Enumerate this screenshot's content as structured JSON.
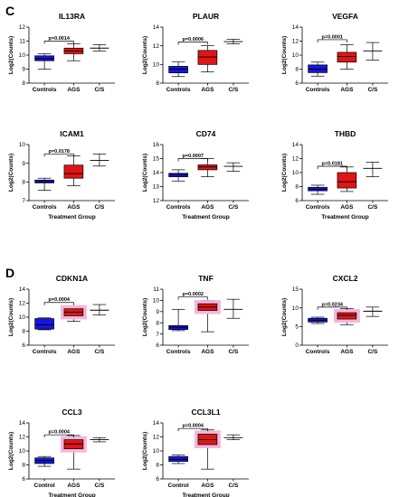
{
  "panels": [
    {
      "letter": "C"
    },
    {
      "letter": "D"
    }
  ],
  "colors": {
    "controls": "#1515e6",
    "ags": "#e01515",
    "ags_halo": "#f4b6dc",
    "cs": "#ffffff",
    "stroke": "#000000"
  },
  "chart_data": [
    {
      "type": "box",
      "panel": "C",
      "title": "IL13RA",
      "xlabel": "Treatment Group",
      "ylabel": "Log2(Counts)",
      "ylim": [
        8,
        12
      ],
      "yticks": [
        8,
        9,
        10,
        11,
        12
      ],
      "categories": [
        "Controls",
        "AGS",
        "C/S"
      ],
      "boxes": [
        {
          "min": 9.0,
          "q1": 9.6,
          "median": 9.75,
          "q3": 9.95,
          "max": 10.1
        },
        {
          "min": 9.6,
          "q1": 10.1,
          "median": 10.3,
          "q3": 10.5,
          "max": 10.8
        },
        {
          "min": 10.3,
          "q1": 10.5,
          "median": 10.5,
          "q3": 10.5,
          "max": 10.75
        }
      ],
      "significance": {
        "text": "p=0.0014",
        "from": 0,
        "to": 1,
        "y": 11.0
      }
    },
    {
      "type": "box",
      "panel": "C",
      "title": "PLAUR",
      "xlabel": "Treatment Group",
      "ylabel": "Log2(Counts)",
      "ylim": [
        8,
        14
      ],
      "yticks": [
        8,
        10,
        12,
        14
      ],
      "categories": [
        "Controls",
        "AGS",
        "C/S"
      ],
      "boxes": [
        {
          "min": 8.7,
          "q1": 9.1,
          "median": 9.5,
          "q3": 9.8,
          "max": 10.3
        },
        {
          "min": 9.2,
          "q1": 10.0,
          "median": 10.8,
          "q3": 11.5,
          "max": 12.0
        },
        {
          "min": 12.2,
          "q1": 12.45,
          "median": 12.45,
          "q3": 12.45,
          "max": 12.7
        }
      ],
      "significance": {
        "text": "p=0.0006",
        "from": 0,
        "to": 1,
        "y": 12.4
      }
    },
    {
      "type": "box",
      "panel": "C",
      "title": "VEGFA",
      "xlabel": "Treatment Group",
      "ylabel": "Log2(Counts)",
      "ylim": [
        6,
        14
      ],
      "yticks": [
        6,
        8,
        10,
        12,
        14
      ],
      "categories": [
        "Controls",
        "AGS",
        "C/S"
      ],
      "boxes": [
        {
          "min": 7.0,
          "q1": 7.5,
          "median": 8.0,
          "q3": 8.6,
          "max": 9.0
        },
        {
          "min": 8.0,
          "q1": 9.0,
          "median": 9.8,
          "q3": 10.4,
          "max": 11.5
        },
        {
          "min": 9.3,
          "q1": 10.6,
          "median": 10.6,
          "q3": 10.6,
          "max": 11.8
        }
      ],
      "significance": {
        "text": "p=0.0001",
        "from": 0,
        "to": 1,
        "y": 12.2
      }
    },
    {
      "type": "box",
      "panel": "C",
      "title": "ICAM1",
      "xlabel": "Treatment Group",
      "ylabel": "Log2(Counts)",
      "ylim": [
        7,
        10
      ],
      "yticks": [
        7,
        8,
        9,
        10
      ],
      "categories": [
        "Controls",
        "AGS",
        "C/S"
      ],
      "boxes": [
        {
          "min": 7.55,
          "q1": 7.95,
          "median": 8.0,
          "q3": 8.1,
          "max": 8.2
        },
        {
          "min": 7.8,
          "q1": 8.2,
          "median": 8.45,
          "q3": 8.9,
          "max": 9.4
        },
        {
          "min": 8.85,
          "q1": 9.15,
          "median": 9.15,
          "q3": 9.15,
          "max": 9.5
        }
      ],
      "significance": {
        "text": "p=0.0178",
        "from": 0,
        "to": 1,
        "y": 9.5
      }
    },
    {
      "type": "box",
      "panel": "C",
      "title": "CD74",
      "xlabel": "Treatment Group",
      "ylabel": "Log2(Counts)",
      "ylim": [
        12,
        16
      ],
      "yticks": [
        12,
        13,
        14,
        15,
        16
      ],
      "categories": [
        "Controls",
        "AGS",
        "C/S"
      ],
      "boxes": [
        {
          "min": 13.4,
          "q1": 13.7,
          "median": 13.85,
          "q3": 13.95,
          "max": 14.2
        },
        {
          "min": 13.7,
          "q1": 14.2,
          "median": 14.4,
          "q3": 14.55,
          "max": 15.0
        },
        {
          "min": 14.1,
          "q1": 14.45,
          "median": 14.45,
          "q3": 14.45,
          "max": 14.7
        }
      ],
      "significance": {
        "text": "p=0.0007",
        "from": 0,
        "to": 1,
        "y": 15.0
      }
    },
    {
      "type": "box",
      "panel": "C",
      "title": "THBD",
      "xlabel": "Treatment Group",
      "ylabel": "Log2(Counts)",
      "ylim": [
        6,
        14
      ],
      "yticks": [
        6,
        8,
        10,
        12,
        14
      ],
      "categories": [
        "Controls",
        "AGS",
        "C/S"
      ],
      "boxes": [
        {
          "min": 6.9,
          "q1": 7.4,
          "median": 7.6,
          "q3": 7.9,
          "max": 8.2
        },
        {
          "min": 7.3,
          "q1": 7.8,
          "median": 8.7,
          "q3": 10.0,
          "max": 10.8
        },
        {
          "min": 9.4,
          "q1": 10.6,
          "median": 10.6,
          "q3": 10.6,
          "max": 11.5
        }
      ],
      "significance": {
        "text": "p=0.0181",
        "from": 0,
        "to": 1,
        "y": 10.9
      }
    },
    {
      "type": "box",
      "panel": "D",
      "title": "CDKN1A",
      "xlabel": "Treatment Group",
      "ylabel": "Log2(Counts)",
      "ylim": [
        6,
        14
      ],
      "yticks": [
        6,
        8,
        10,
        12,
        14
      ],
      "categories": [
        "Controls",
        "AGS",
        "C/S"
      ],
      "halo": true,
      "boxes": [
        {
          "min": 8.2,
          "q1": 8.3,
          "median": 8.9,
          "q3": 9.8,
          "max": 9.9
        },
        {
          "min": 9.4,
          "q1": 10.2,
          "median": 10.7,
          "q3": 11.2,
          "max": 11.6
        },
        {
          "min": 10.3,
          "q1": 11.0,
          "median": 11.0,
          "q3": 11.0,
          "max": 11.8
        }
      ],
      "significance": {
        "text": "p=0.0004",
        "from": 0,
        "to": 1,
        "y": 12.1
      }
    },
    {
      "type": "box",
      "panel": "D",
      "title": "TNF",
      "xlabel": "Treatment Group",
      "ylabel": "Log2(Counts)",
      "ylim": [
        6,
        11
      ],
      "yticks": [
        6,
        7,
        8,
        9,
        10,
        11
      ],
      "categories": [
        "Controls",
        "AGS",
        "C/S"
      ],
      "halo": true,
      "boxes": [
        {
          "min": 7.3,
          "q1": 7.4,
          "median": 7.6,
          "q3": 7.75,
          "max": 9.2
        },
        {
          "min": 7.2,
          "q1": 9.1,
          "median": 9.4,
          "q3": 9.7,
          "max": 10.0
        },
        {
          "min": 8.4,
          "q1": 9.2,
          "median": 9.2,
          "q3": 9.2,
          "max": 10.1
        }
      ],
      "significance": {
        "text": "p=0.0002",
        "from": 0,
        "to": 1,
        "y": 10.3
      }
    },
    {
      "type": "box",
      "panel": "D",
      "title": "CXCL2",
      "xlabel": "Treatment Group",
      "ylabel": "Log2(Counts)",
      "ylim": [
        0,
        15
      ],
      "yticks": [
        0,
        5,
        10,
        15
      ],
      "categories": [
        "Controls",
        "AGS",
        "C/S"
      ],
      "halo": true,
      "boxes": [
        {
          "min": 5.8,
          "q1": 6.2,
          "median": 6.7,
          "q3": 7.2,
          "max": 7.5
        },
        {
          "min": 5.5,
          "q1": 7.0,
          "median": 8.0,
          "q3": 8.7,
          "max": 9.8
        },
        {
          "min": 7.7,
          "q1": 9.1,
          "median": 9.1,
          "q3": 9.1,
          "max": 10.2
        }
      ],
      "significance": {
        "text": "p=0.0234",
        "from": 0,
        "to": 1,
        "y": 10.2
      }
    },
    {
      "type": "box",
      "panel": "D",
      "title": "CCL3",
      "xlabel": "Treatment Group",
      "ylabel": "Log2(Counts)",
      "ylim": [
        6,
        14
      ],
      "yticks": [
        6,
        8,
        10,
        12,
        14
      ],
      "categories": [
        "Control",
        "AGS",
        "C/S"
      ],
      "halo": true,
      "boxes": [
        {
          "min": 7.8,
          "q1": 8.2,
          "median": 8.6,
          "q3": 9.0,
          "max": 9.2
        },
        {
          "min": 7.4,
          "q1": 10.3,
          "median": 11.0,
          "q3": 11.6,
          "max": 12.2
        },
        {
          "min": 11.3,
          "q1": 11.6,
          "median": 11.6,
          "q3": 11.6,
          "max": 11.9
        }
      ],
      "significance": {
        "text": "p=0.0004",
        "from": 0,
        "to": 1,
        "y": 12.3
      }
    },
    {
      "type": "box",
      "panel": "D",
      "title": "CCL3L1",
      "xlabel": "Treatment Group",
      "ylabel": "Log2(Counts)",
      "ylim": [
        6,
        14
      ],
      "yticks": [
        6,
        8,
        10,
        12,
        14
      ],
      "categories": [
        "Control",
        "AGS",
        "C/S"
      ],
      "halo": true,
      "boxes": [
        {
          "min": 8.2,
          "q1": 8.5,
          "median": 8.8,
          "q3": 9.2,
          "max": 9.4
        },
        {
          "min": 7.4,
          "q1": 10.9,
          "median": 11.6,
          "q3": 12.4,
          "max": 13.0
        },
        {
          "min": 11.6,
          "q1": 11.9,
          "median": 11.9,
          "q3": 11.9,
          "max": 12.3
        }
      ],
      "significance": {
        "text": "p=0.0004",
        "from": 0,
        "to": 1,
        "y": 13.2
      }
    }
  ]
}
